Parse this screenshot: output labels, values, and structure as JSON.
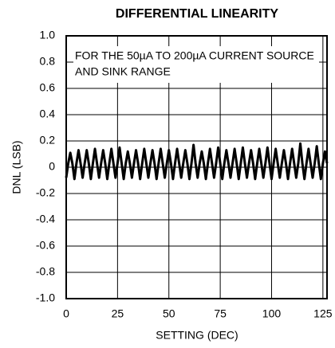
{
  "chart_data": {
    "type": "line",
    "title": "DIFFERENTIAL LINEARITY",
    "xlabel": "SETTING (DEC)",
    "ylabel": "DNL (LSB)",
    "annotation": [
      "FOR THE 50µA TO 200µA CURRENT SOURCE",
      "AND SINK RANGE"
    ],
    "color": "#000000",
    "grid": true,
    "xlim": [
      0,
      127
    ],
    "ylim": [
      -1.0,
      1.0
    ],
    "xticks": [
      0,
      25,
      50,
      75,
      100,
      125
    ],
    "yticks": [
      {
        "value": 1.0,
        "label": "1.0"
      },
      0.8,
      0.6,
      0.4,
      0.2,
      0,
      -0.2,
      -0.4,
      -0.6,
      -0.8,
      {
        "value": -1.0,
        "label": "-1.0"
      }
    ],
    "x": [
      0,
      1,
      2,
      3,
      4,
      5,
      6,
      7,
      8,
      9,
      10,
      11,
      12,
      13,
      14,
      15,
      16,
      17,
      18,
      19,
      20,
      21,
      22,
      23,
      24,
      25,
      26,
      27,
      28,
      29,
      30,
      31,
      32,
      33,
      34,
      35,
      36,
      37,
      38,
      39,
      40,
      41,
      42,
      43,
      44,
      45,
      46,
      47,
      48,
      49,
      50,
      51,
      52,
      53,
      54,
      55,
      56,
      57,
      58,
      59,
      60,
      61,
      62,
      63,
      64,
      65,
      66,
      67,
      68,
      69,
      70,
      71,
      72,
      73,
      74,
      75,
      76,
      77,
      78,
      79,
      80,
      81,
      82,
      83,
      84,
      85,
      86,
      87,
      88,
      89,
      90,
      91,
      92,
      93,
      94,
      95,
      96,
      97,
      98,
      99,
      100,
      101,
      102,
      103,
      104,
      105,
      106,
      107,
      108,
      109,
      110,
      111,
      112,
      113,
      114,
      115,
      116,
      117,
      118,
      119,
      120,
      121,
      122,
      123,
      124,
      125,
      126,
      127
    ],
    "values": [
      -0.08,
      0.03,
      0.11,
      0.03,
      -0.09,
      0.03,
      0.13,
      0.03,
      -0.08,
      0.03,
      0.13,
      0.03,
      -0.09,
      0.03,
      0.14,
      0.03,
      -0.08,
      0.03,
      0.13,
      0.03,
      -0.09,
      0.03,
      0.14,
      0.03,
      -0.08,
      0.03,
      0.15,
      0.03,
      -0.09,
      0.03,
      0.12,
      0.03,
      -0.08,
      0.03,
      0.13,
      0.03,
      -0.09,
      0.03,
      0.14,
      0.03,
      -0.08,
      0.03,
      0.13,
      0.03,
      -0.09,
      0.03,
      0.14,
      0.03,
      -0.08,
      0.03,
      0.13,
      0.03,
      -0.09,
      0.03,
      0.14,
      0.03,
      -0.08,
      0.03,
      0.13,
      0.03,
      -0.09,
      0.03,
      0.17,
      0.03,
      -0.08,
      0.03,
      0.12,
      0.03,
      -0.09,
      0.03,
      0.14,
      0.03,
      -0.08,
      0.03,
      0.15,
      0.03,
      -0.09,
      0.03,
      0.13,
      0.03,
      -0.08,
      0.03,
      0.14,
      0.03,
      -0.09,
      0.03,
      0.15,
      0.03,
      -0.08,
      0.03,
      0.13,
      0.03,
      -0.09,
      0.03,
      0.14,
      0.03,
      -0.08,
      0.03,
      0.15,
      0.03,
      -0.09,
      0.03,
      0.14,
      0.03,
      -0.08,
      0.03,
      0.13,
      0.03,
      -0.09,
      0.03,
      0.14,
      0.03,
      -0.08,
      0.03,
      0.18,
      0.03,
      -0.09,
      0.03,
      0.14,
      0.03,
      -0.08,
      0.03,
      0.16,
      0.03,
      -0.09,
      0.03,
      0.12,
      0.03
    ]
  }
}
